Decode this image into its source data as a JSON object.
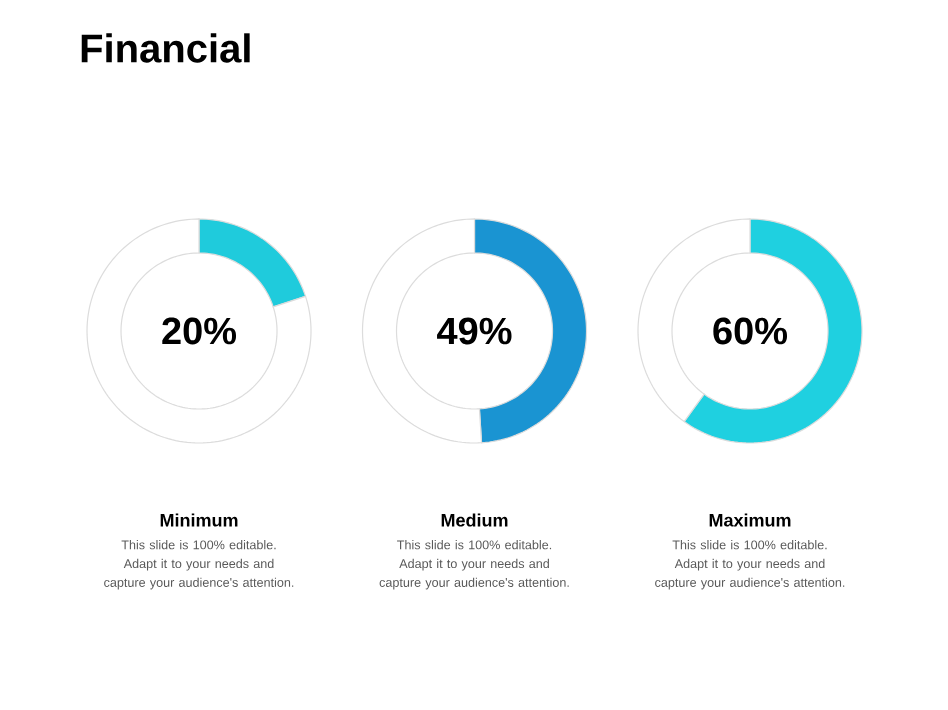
{
  "chart_data": [
    {
      "type": "other",
      "title": "Financial"
    },
    {
      "type": "donut",
      "title": "Minimum",
      "categories": [
        null,
        null
      ],
      "values": [
        20,
        80
      ],
      "colors": [
        "#1fcbdc",
        "#ffffff"
      ],
      "annotations": [
        "20%",
        "This slide is 100% editable. Adapt it to your needs and capture your audience's attention."
      ]
    },
    {
      "type": "donut",
      "title": "Medium",
      "categories": [
        null,
        null
      ],
      "values": [
        49,
        51
      ],
      "colors": [
        "#1a94d2",
        "#ffffff"
      ],
      "annotations": [
        "49%",
        "This slide is 100% editable. Adapt it to your needs and capture your audience's attention."
      ]
    },
    {
      "type": "donut",
      "title": "Maximum",
      "categories": [
        null,
        null
      ],
      "values": [
        60,
        40
      ],
      "colors": [
        "#1fd0e0",
        "#ffffff"
      ],
      "annotations": [
        "60%",
        "This slide is 100% editable. Adapt it to your needs and capture your audience's attention."
      ]
    }
  ]
}
